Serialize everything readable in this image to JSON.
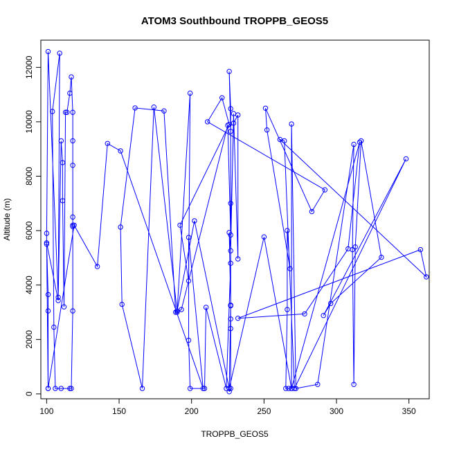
{
  "chart_data": {
    "type": "line",
    "title": "ATOM3 Southbound TROPPB_GEOS5",
    "xlabel": "TROPPB_GEOS5",
    "ylabel": "Altitude (m)",
    "xlim": [
      96,
      364
    ],
    "ylim": [
      -180,
      13000
    ],
    "x_ticks": [
      100,
      150,
      200,
      250,
      300,
      350
    ],
    "y_ticks": [
      0,
      2000,
      4000,
      6000,
      8000,
      10000,
      12000
    ],
    "x_tick_labels": [
      "100",
      "150",
      "200",
      "250",
      "300",
      "350"
    ],
    "y_tick_labels": [
      "0",
      "2000",
      "4000",
      "6000",
      "8000",
      "10000",
      "12000"
    ],
    "grid": false,
    "marker": "open-circle",
    "series": [
      {
        "color": "#0000ff",
        "points": [
          [
            101,
            200
          ],
          [
            101,
            3050
          ],
          [
            101,
            3650
          ],
          [
            100,
            5500
          ],
          [
            100,
            5900
          ],
          [
            101,
            12580
          ],
          [
            108,
            3550
          ],
          [
            110,
            9300
          ],
          [
            111,
            8500
          ],
          [
            111,
            7100
          ],
          [
            112,
            3200
          ],
          [
            113,
            10350
          ],
          [
            114,
            10350
          ],
          [
            116,
            11050
          ],
          [
            117,
            11650
          ],
          [
            118,
            10350
          ],
          [
            118,
            9300
          ],
          [
            118,
            8400
          ],
          [
            118,
            6500
          ],
          [
            118,
            6200
          ],
          [
            118,
            6150
          ],
          [
            118,
            3050
          ],
          [
            117,
            200
          ],
          [
            116,
            200
          ],
          [
            110,
            200
          ],
          [
            106,
            200
          ],
          [
            105,
            2450
          ],
          [
            104,
            10380
          ],
          [
            109,
            12520
          ],
          [
            108,
            3430
          ],
          [
            100,
            5550
          ],
          [
            101,
            200
          ],
          [
            119,
            6200
          ],
          [
            135,
            4680
          ],
          [
            142,
            9200
          ],
          [
            151,
            8930
          ],
          [
            208,
            200
          ],
          [
            198,
            5750
          ],
          [
            198,
            1970
          ],
          [
            199,
            200
          ],
          [
            209,
            200
          ],
          [
            210,
            3180
          ],
          [
            224,
            200
          ],
          [
            227,
            4800
          ],
          [
            227,
            10480
          ],
          [
            226,
            11850
          ],
          [
            227,
            9650
          ],
          [
            227,
            7000
          ],
          [
            227,
            3260
          ],
          [
            227,
            3240
          ],
          [
            227,
            2750
          ],
          [
            227,
            2400
          ],
          [
            227,
            200
          ],
          [
            226,
            80
          ],
          [
            227,
            3250
          ],
          [
            226,
            5930
          ],
          [
            227,
            5260
          ],
          [
            229,
            10300
          ],
          [
            232,
            4960
          ],
          [
            232,
            10250
          ],
          [
            229,
            9950
          ],
          [
            227,
            5840
          ],
          [
            225,
            9870
          ],
          [
            193,
            3100
          ],
          [
            190,
            3000
          ],
          [
            199,
            11050
          ],
          [
            198,
            4150
          ],
          [
            192,
            6200
          ],
          [
            226,
            9900
          ],
          [
            221,
            10880
          ],
          [
            211,
            10000
          ],
          [
            292,
            7500
          ],
          [
            283,
            6700
          ],
          [
            251,
            10500
          ],
          [
            252,
            9700
          ],
          [
            268,
            4600
          ],
          [
            266,
            6000
          ],
          [
            266,
            3100
          ],
          [
            265,
            200
          ],
          [
            267,
            200
          ],
          [
            269,
            200
          ],
          [
            269,
            9920
          ],
          [
            272,
            200
          ],
          [
            287,
            350
          ],
          [
            312,
            9170
          ],
          [
            311,
            5300
          ],
          [
            312,
            350
          ],
          [
            313,
            5400
          ],
          [
            317,
            9300
          ],
          [
            331,
            5020
          ],
          [
            296,
            3320
          ],
          [
            291,
            2880
          ],
          [
            348,
            8640
          ],
          [
            271,
            200
          ],
          [
            264,
            9300
          ],
          [
            261,
            9350
          ],
          [
            362,
            4300
          ],
          [
            358,
            5300
          ],
          [
            232,
            2780
          ],
          [
            278,
            2940
          ],
          [
            308,
            5330
          ],
          [
            316,
            9250
          ],
          [
            269,
            200
          ],
          [
            250,
            5770
          ],
          [
            226,
            200
          ],
          [
            202,
            6360
          ],
          [
            190,
            3050
          ],
          [
            174,
            10540
          ],
          [
            166,
            200
          ],
          [
            152,
            3290
          ],
          [
            151,
            6130
          ],
          [
            161,
            10510
          ],
          [
            181,
            10400
          ],
          [
            189,
            3000
          ]
        ]
      }
    ]
  }
}
